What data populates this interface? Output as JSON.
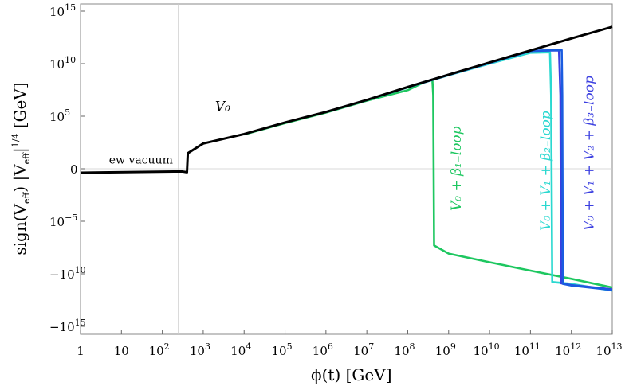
{
  "chart_data": {
    "type": "line",
    "xscale": "log",
    "yscale": "signed-log",
    "xlim": [
      1,
      10000000000000.0
    ],
    "ylim": [
      -1e+17,
      1e+16
    ],
    "grid": "reference lines at x=246 and y=0",
    "x_ticks": [
      {
        "value": 1,
        "base": "1",
        "exp": ""
      },
      {
        "value": 10,
        "base": "10",
        "exp": ""
      },
      {
        "value": 100,
        "base": "10",
        "exp": "2"
      },
      {
        "value": 1000,
        "base": "10",
        "exp": "3"
      },
      {
        "value": 10000,
        "base": "10",
        "exp": "4"
      },
      {
        "value": 100000,
        "base": "10",
        "exp": "5"
      },
      {
        "value": 1000000,
        "base": "10",
        "exp": "6"
      },
      {
        "value": 10000000,
        "base": "10",
        "exp": "7"
      },
      {
        "value": 100000000,
        "base": "10",
        "exp": "8"
      },
      {
        "value": 1000000000,
        "base": "10",
        "exp": "9"
      },
      {
        "value": 10000000000,
        "base": "10",
        "exp": "10"
      },
      {
        "value": 100000000000,
        "base": "10",
        "exp": "11"
      },
      {
        "value": 1000000000000,
        "base": "10",
        "exp": "12"
      },
      {
        "value": 10000000000000,
        "base": "10",
        "exp": "13"
      }
    ],
    "y_ticks": [
      {
        "value": 1000000000000000.0,
        "base": "10",
        "exp": "15"
      },
      {
        "value": 10000000000.0,
        "base": "10",
        "exp": "10"
      },
      {
        "value": 100000.0,
        "base": "10",
        "exp": "5"
      },
      {
        "value": 0,
        "base": "0",
        "exp": ""
      },
      {
        "value": -100000.0,
        "base": "10",
        "exp": "−5"
      },
      {
        "value": -10000000000.0,
        "base": "−10",
        "exp": "10"
      },
      {
        "value": -1000000000000000.0,
        "base": "−10",
        "exp": "15"
      }
    ],
    "xlabel": {
      "pre": "ϕ(t) [GeV]"
    },
    "ylabel": {
      "a": "sign(V",
      "a_sub": "eff",
      "b": ") |V",
      "b_sub": "eff",
      "c": "|",
      "c_sup": "1/4",
      "d": " [GeV]"
    },
    "annotations": [
      {
        "text": "ew vacuum",
        "x": 30,
        "y": 3.0
      },
      {
        "text": "V₀",
        "x": 3000,
        "y": 300000.0
      }
    ],
    "series": [
      {
        "name": "V₀",
        "color": "#000000",
        "x": [
          1,
          300,
          330,
          360,
          390,
          400,
          420,
          1000,
          10000,
          100000,
          1000000,
          10000000,
          100000000,
          1000000000,
          10000000000,
          100000000000,
          1000000000000,
          10000000000000
        ],
        "y": [
          -0.5,
          -1.8,
          -1.9,
          -2.0,
          -2.1,
          -2.2,
          30,
          250,
          2000,
          25000,
          250000,
          3500000.0,
          60000000.0,
          900000000.0,
          13000000000.0,
          180000000000.0,
          2500000000000.0,
          32000000000000.0
        ]
      },
      {
        "name": "V₀ + β₁₋loop",
        "color": "#1ec760",
        "label_x": 2000000000.0,
        "label_y": -0.35,
        "x": [
          10000,
          100000,
          1000000,
          10000000,
          100000000,
          300000000,
          400000000,
          420000000,
          440000000,
          1000000000,
          10000000000,
          100000000000,
          1000000000000,
          10000000000000
        ],
        "y": [
          1800,
          22000,
          220000,
          3000000.0,
          30000000.0,
          240000000.0,
          250000000.0,
          10000000.0,
          -20000000.0,
          -120000000.0,
          -800000000.0,
          -5000000000.0,
          -30000000000.0,
          -200000000000.0
        ]
      },
      {
        "name": "V₀ + V₁ + β₂₋loop",
        "color": "#2ad8d0",
        "label_x": 300000000000.0,
        "label_y": -0.25,
        "x": [
          1000000,
          10000000,
          100000000,
          1000000000,
          10000000000,
          100000000000,
          250000000000,
          300000000000,
          320000000000,
          340000000000,
          1000000000000,
          10000000000000
        ],
        "y": [
          250000,
          3400000.0,
          55000000.0,
          800000000.0,
          10000000000.0,
          110000000000.0,
          120000000000.0,
          120000000000.0,
          10000000.0,
          -60000000000.0,
          -90000000000.0,
          -400000000000.0
        ]
      },
      {
        "name": "V₀ + V₁ + V₂ + β₃₋loop",
        "color": "#3a3ee0",
        "label_x": 3500000000000.0,
        "label_y": -0.25,
        "x": [
          1000000,
          10000000,
          100000000,
          1000000000,
          10000000000,
          100000000000,
          300000000000,
          500000000000,
          540000000000,
          560000000000,
          1000000000000,
          10000000000000
        ],
        "y": [
          250000,
          3500000.0,
          58000000.0,
          850000000.0,
          12000000000.0,
          160000000000.0,
          180000000000.0,
          180000000000.0,
          10000000.0,
          -80000000000.0,
          -120000000000.0,
          -300000000000.0
        ]
      },
      {
        "name": "",
        "color": "#1a5ce0",
        "x": [
          100000000,
          1000000000,
          10000000000,
          100000000000,
          500000000000,
          580000000000,
          600000000000,
          620000000000,
          1000000000000,
          10000000000000
        ],
        "y": [
          60000000.0,
          900000000.0,
          12500000000.0,
          170000000000.0,
          190000000000.0,
          190000000000.0,
          10000000.0,
          -90000000000.0,
          -130000000000.0,
          -350000000000.0
        ]
      }
    ]
  }
}
